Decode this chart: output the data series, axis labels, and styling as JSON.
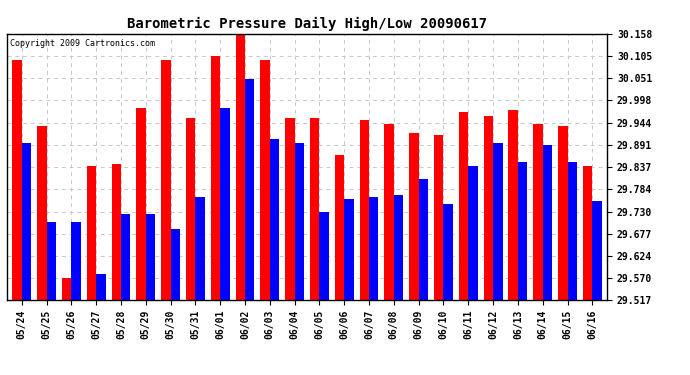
{
  "title": "Barometric Pressure Daily High/Low 20090617",
  "copyright": "Copyright 2009 Cartronics.com",
  "dates": [
    "05/24",
    "05/25",
    "05/26",
    "05/27",
    "05/28",
    "05/29",
    "05/30",
    "05/31",
    "06/01",
    "06/02",
    "06/03",
    "06/04",
    "06/05",
    "06/06",
    "06/07",
    "06/08",
    "06/09",
    "06/10",
    "06/11",
    "06/12",
    "06/13",
    "06/14",
    "06/15",
    "06/16"
  ],
  "highs": [
    30.095,
    29.935,
    29.57,
    29.84,
    29.845,
    29.98,
    30.095,
    29.955,
    30.105,
    30.155,
    30.095,
    29.955,
    29.955,
    29.865,
    29.95,
    29.94,
    29.92,
    29.915,
    29.97,
    29.96,
    29.975,
    29.94,
    29.935,
    29.84
  ],
  "lows": [
    29.895,
    29.705,
    29.705,
    29.58,
    29.725,
    29.725,
    29.688,
    29.765,
    29.98,
    30.048,
    29.905,
    29.895,
    29.73,
    29.76,
    29.765,
    29.77,
    29.808,
    29.748,
    29.84,
    29.895,
    29.85,
    29.89,
    29.85,
    29.755
  ],
  "ymin": 29.517,
  "ymax": 30.158,
  "yticks": [
    30.158,
    30.105,
    30.051,
    29.998,
    29.944,
    29.891,
    29.837,
    29.784,
    29.73,
    29.677,
    29.624,
    29.57,
    29.517
  ],
  "high_color": "#FF0000",
  "low_color": "#0000FF",
  "background_color": "#FFFFFF",
  "grid_color": "#C8C8C8",
  "title_fontsize": 10,
  "bar_width": 0.38,
  "figwidth": 6.9,
  "figheight": 3.75,
  "dpi": 100
}
